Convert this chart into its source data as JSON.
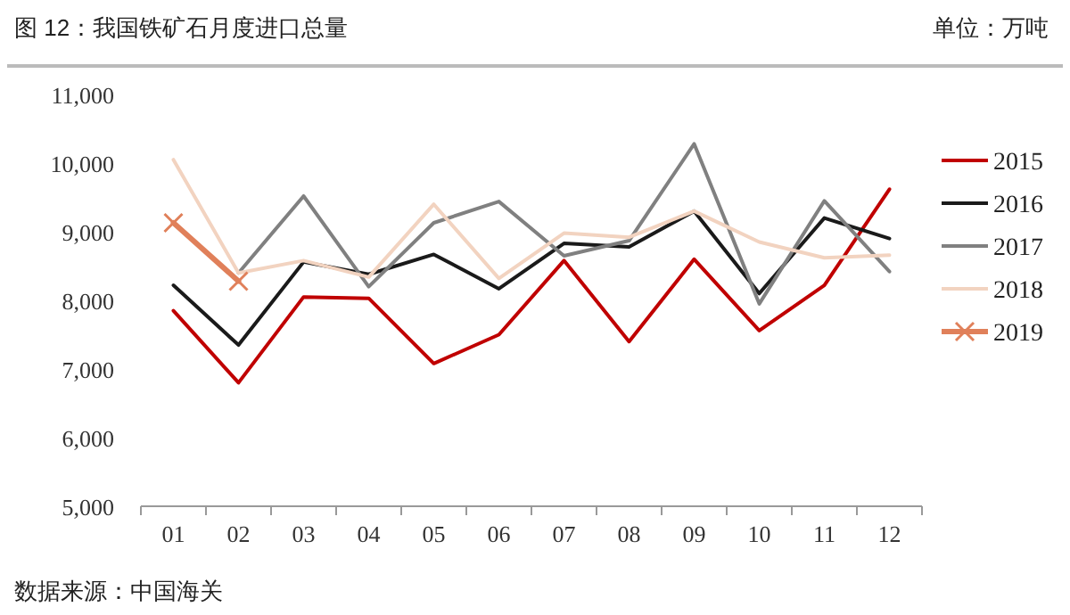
{
  "chart_data": {
    "type": "line",
    "title": "图 12：我国铁矿石月度进口总量",
    "annotations": [
      "单位：万吨",
      "数据来源：中国海关"
    ],
    "categories": [
      "01",
      "02",
      "03",
      "04",
      "05",
      "06",
      "07",
      "08",
      "09",
      "10",
      "11",
      "12"
    ],
    "series": [
      {
        "name": "2015",
        "color": "#c00000",
        "values": [
          7850,
          6800,
          8050,
          8030,
          7080,
          7500,
          8580,
          7400,
          8600,
          7560,
          8220,
          9620
        ]
      },
      {
        "name": "2016",
        "color": "#1a1a1a",
        "values": [
          8220,
          7350,
          8560,
          8380,
          8670,
          8170,
          8830,
          8780,
          9300,
          8100,
          9200,
          8900
        ]
      },
      {
        "name": "2017",
        "color": "#808080",
        "values": [
          null,
          8400,
          9520,
          8200,
          9130,
          9440,
          8650,
          8870,
          10280,
          7950,
          9450,
          8420
        ]
      },
      {
        "name": "2018",
        "color": "#f2d3c0",
        "values": [
          10050,
          8400,
          8580,
          8340,
          9400,
          8320,
          8980,
          8920,
          9300,
          8850,
          8620,
          8660
        ]
      },
      {
        "name": "2019",
        "color": "#e0805a",
        "marker": "cross",
        "values": [
          9130,
          8280,
          null,
          null,
          null,
          null,
          null,
          null,
          null,
          null,
          null,
          null
        ]
      }
    ],
    "ylim": [
      5000,
      11000
    ],
    "yticks": [
      {
        "value": 5000,
        "label": "5,000"
      },
      {
        "value": 6000,
        "label": "6,000"
      },
      {
        "value": 7000,
        "label": "7,000"
      },
      {
        "value": 8000,
        "label": "8,000"
      },
      {
        "value": 9000,
        "label": "9,000"
      },
      {
        "value": 10000,
        "label": "10,000"
      },
      {
        "value": 11000,
        "label": "11,000"
      }
    ],
    "grid": false,
    "legend": "right",
    "line_style": "solid",
    "marker": "none"
  }
}
